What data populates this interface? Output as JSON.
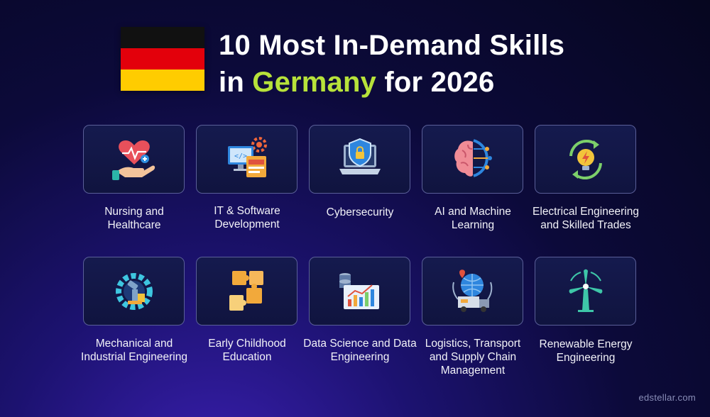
{
  "colors": {
    "flag": [
      "#111111",
      "#e3000b",
      "#ffcc00"
    ],
    "accent": "#b7e23a"
  },
  "title": {
    "line1": "10 Most In-Demand Skills",
    "line2_prefix": "in ",
    "line2_highlight": "Germany",
    "line2_suffix": " for 2026"
  },
  "skills": [
    {
      "label": "Nursing and Healthcare",
      "icon": "heart-hand-icon"
    },
    {
      "label": "IT & Software Development",
      "icon": "computer-code-icon"
    },
    {
      "label": "Cybersecurity",
      "icon": "laptop-shield-icon"
    },
    {
      "label": "AI and Machine Learning",
      "icon": "brain-circuit-icon"
    },
    {
      "label": "Electrical Engineering and Skilled Trades",
      "icon": "lightbulb-cycle-icon"
    },
    {
      "label": "Mechanical and Industrial Engineering",
      "icon": "gear-robot-arm-icon"
    },
    {
      "label": "Early Childhood Education",
      "icon": "puzzle-icon"
    },
    {
      "label": "Data Science and Data Engineering",
      "icon": "data-chart-icon"
    },
    {
      "label": "Logistics, Transport and Supply Chain Management",
      "icon": "truck-globe-icon"
    },
    {
      "label": "Renewable Energy Engineering",
      "icon": "wind-turbine-icon"
    }
  ],
  "watermark": "edstellar.com"
}
